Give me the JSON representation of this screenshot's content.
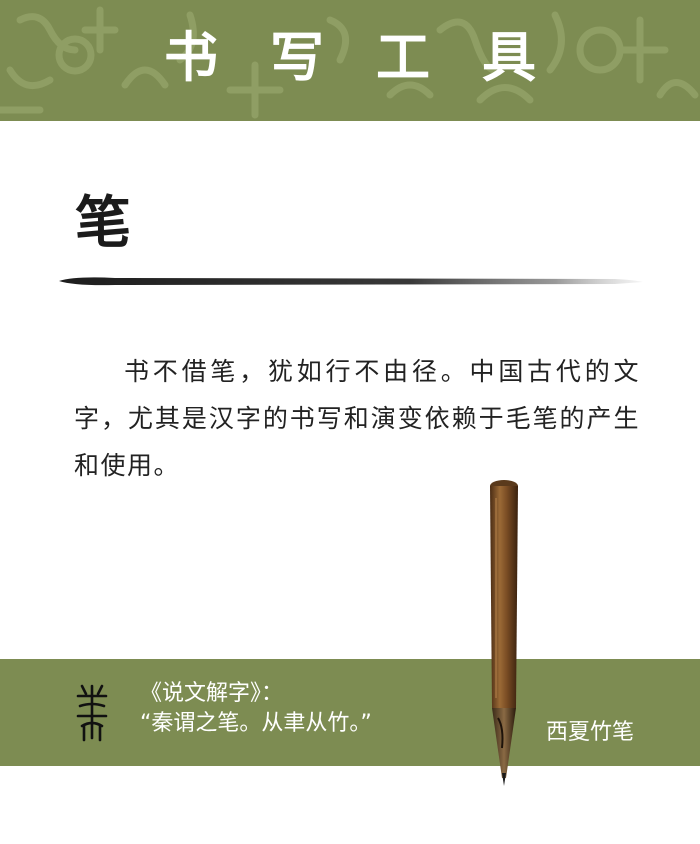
{
  "header": {
    "title": "书写工具"
  },
  "section": {
    "title": "笔"
  },
  "body": {
    "paragraph": "书不借笔，犹如行不由径。中国古代的文字，尤其是汉字的书写和演变依赖于毛笔的产生和使用。"
  },
  "caption": {
    "source": "《说文解字》：",
    "quote": "“秦谓之笔。从聿从竹。”",
    "image_label": "西夏竹笔"
  },
  "colors": {
    "band": "#7d8c52",
    "text": "#222222",
    "title": "#1b1b1b",
    "bamboo": "#8a5a2e"
  },
  "icons": {
    "seal": "seal-script-bi-icon",
    "pen": "bamboo-brush-image"
  }
}
